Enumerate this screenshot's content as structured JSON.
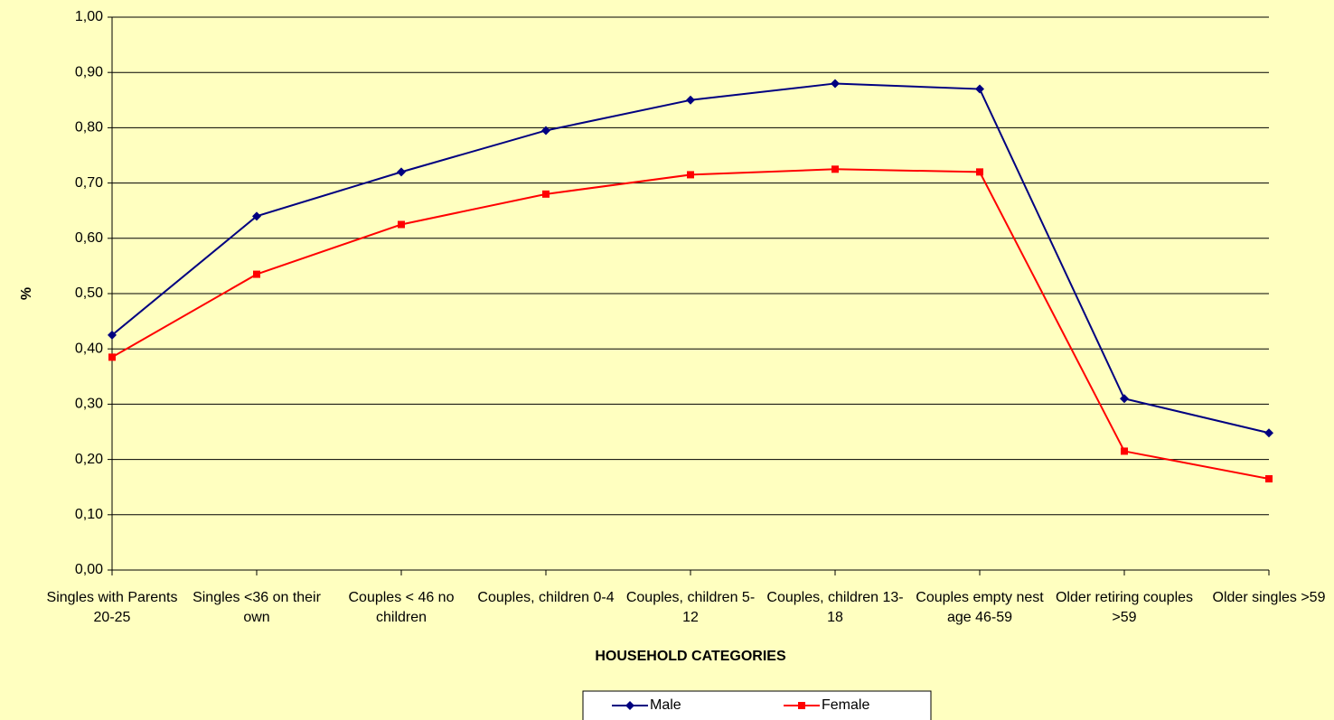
{
  "chart_data": {
    "type": "line",
    "x_label": "HOUSEHOLD CATEGORIES",
    "y_label": "%",
    "categories": [
      "Singles with Parents 20-25",
      "Singles  <36 on their own",
      "Couples < 46 no children",
      "Couples, children 0-4",
      "Couples, children 5-12",
      "Couples, children 13-18",
      "Couples empty nest age 46-59",
      "Older retiring couples >59",
      "Older singles >59"
    ],
    "series": [
      {
        "name": "Male",
        "color": "#000080",
        "marker": "diamond",
        "values": [
          0.425,
          0.64,
          0.72,
          0.795,
          0.85,
          0.88,
          0.87,
          0.31,
          0.248
        ]
      },
      {
        "name": "Female",
        "color": "#ff0000",
        "marker": "square",
        "values": [
          0.385,
          0.535,
          0.625,
          0.68,
          0.715,
          0.725,
          0.72,
          0.215,
          0.165
        ]
      }
    ],
    "ylim": [
      0,
      1
    ],
    "yticks": [
      {
        "value": 0,
        "label": "0,00"
      },
      {
        "value": 0.1,
        "label": "0,10"
      },
      {
        "value": 0.2,
        "label": "0,20"
      },
      {
        "value": 0.3,
        "label": "0,30"
      },
      {
        "value": 0.4,
        "label": "0,40"
      },
      {
        "value": 0.5,
        "label": "0,50"
      },
      {
        "value": 0.6,
        "label": "0,60"
      },
      {
        "value": 0.7,
        "label": "0,70"
      },
      {
        "value": 0.8,
        "label": "0,80"
      },
      {
        "value": 0.9,
        "label": "0,90"
      },
      {
        "value": 1,
        "label": "1,00"
      }
    ],
    "grid": true,
    "legend": "bottom"
  }
}
